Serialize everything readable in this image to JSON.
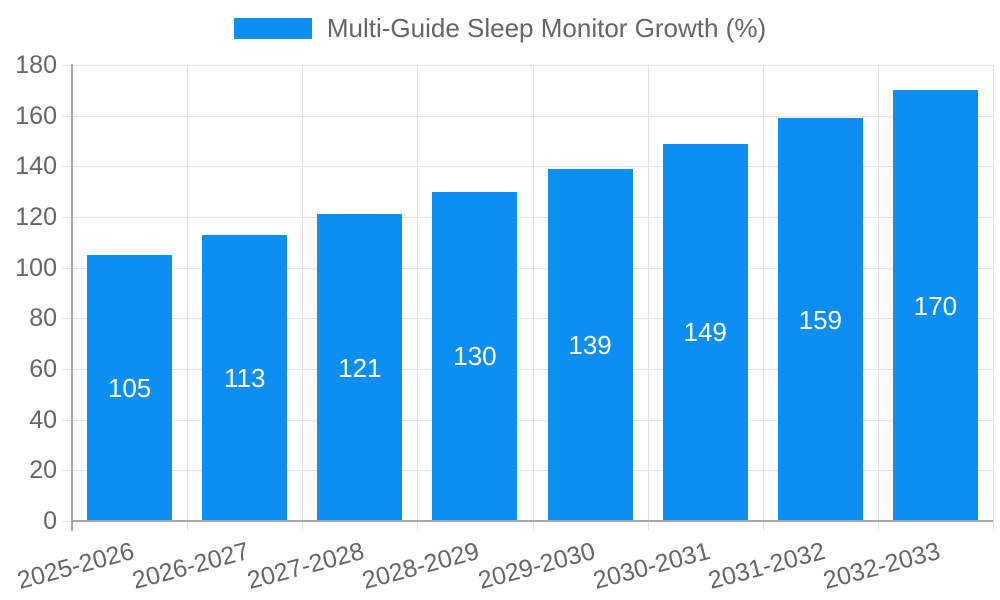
{
  "legend": {
    "label": "Multi-Guide Sleep Monitor Growth (%)"
  },
  "colors": {
    "bar": "#0D8EF2",
    "grid": "#E3E3E3",
    "axis": "#A6A6A6",
    "tick_text": "#666666",
    "legend_text": "#666666",
    "value_text": "#FFFFFF",
    "background": "#FFFFFF"
  },
  "chart_data": {
    "type": "bar",
    "title": "Multi-Guide Sleep Monitor Growth (%)",
    "categories": [
      "2025-2026",
      "2026-2027",
      "2027-2028",
      "2028-2029",
      "2029-2030",
      "2030-2031",
      "2031-2032",
      "2032-2033"
    ],
    "values": [
      105,
      113,
      121,
      130,
      139,
      149,
      159,
      170
    ],
    "xlabel": "",
    "ylabel": "",
    "ylim": [
      0,
      180
    ],
    "yticks": [
      0,
      20,
      40,
      60,
      80,
      100,
      120,
      140,
      160,
      180
    ],
    "grid": true,
    "legend_position": "top-center",
    "value_label_position": "inside-center",
    "x_tick_rotation_deg": 15
  }
}
